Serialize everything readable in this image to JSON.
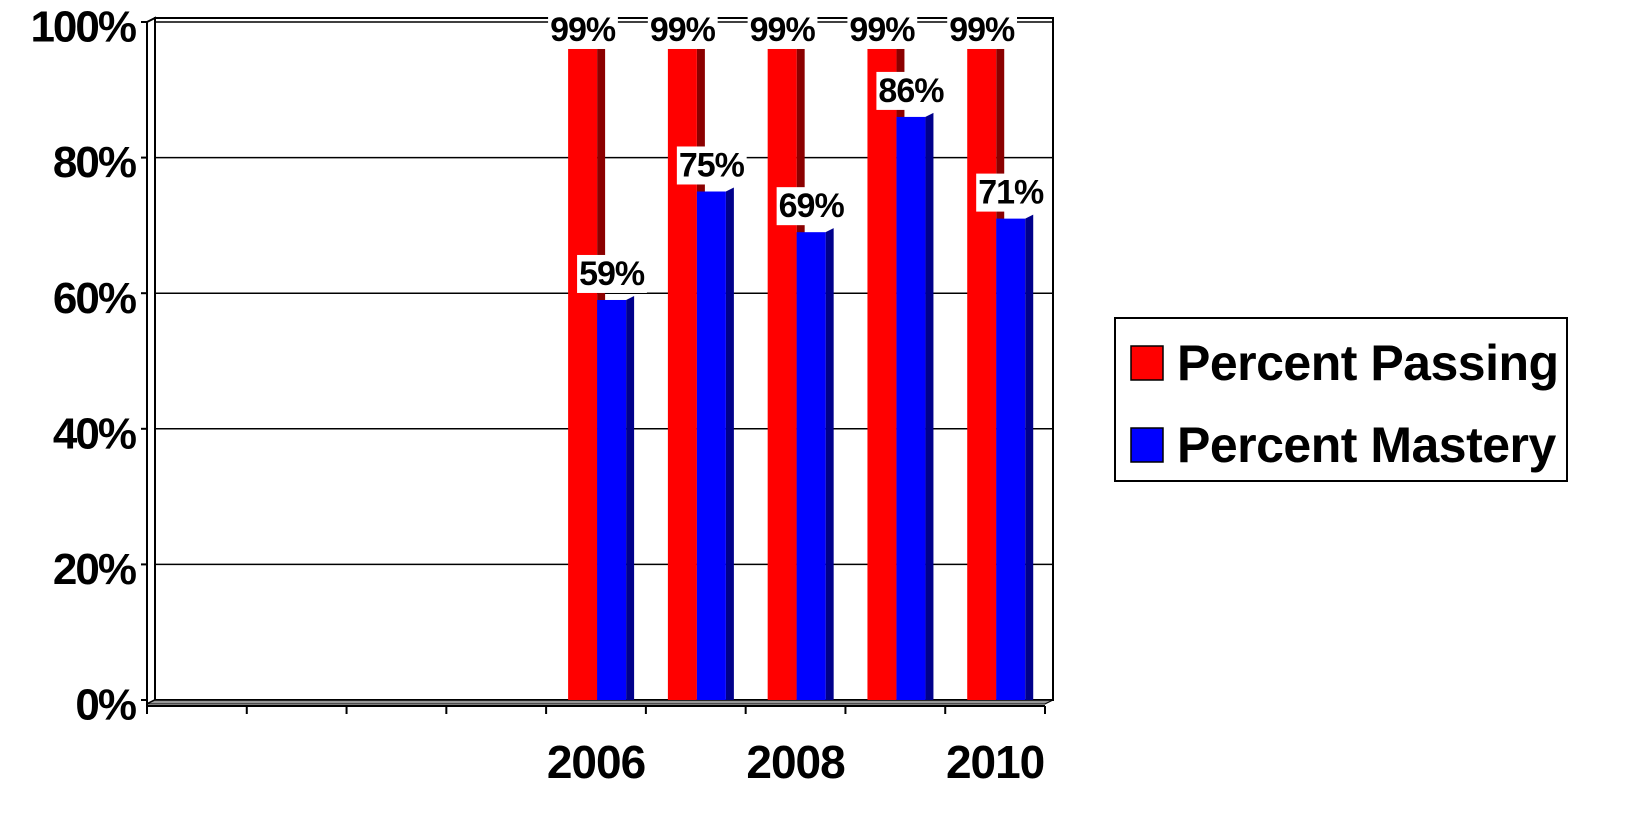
{
  "chart_data": {
    "type": "bar",
    "categories": [
      null,
      null,
      null,
      null,
      "2006",
      null,
      "2008",
      null,
      "2010"
    ],
    "series": [
      {
        "name": "Percent Passing",
        "color": "#ff0000",
        "side_color": "#8b0000",
        "values": [
          null,
          null,
          null,
          null,
          99,
          99,
          99,
          99,
          99
        ],
        "value_labels": [
          null,
          null,
          null,
          null,
          "99%",
          "99%",
          "99%",
          "99%",
          "99%"
        ]
      },
      {
        "name": "Percent Mastery",
        "color": "#0000ff",
        "side_color": "#00008b",
        "values": [
          null,
          null,
          null,
          null,
          59,
          75,
          69,
          86,
          71
        ],
        "value_labels": [
          null,
          null,
          null,
          null,
          "59%",
          "75%",
          "69%",
          "86%",
          "71%"
        ]
      }
    ],
    "ylim": [
      0,
      100
    ],
    "yticks": [
      {
        "value": 0,
        "label": "0%"
      },
      {
        "value": 20,
        "label": "20%"
      },
      {
        "value": 40,
        "label": "40%"
      },
      {
        "value": 60,
        "label": "60%"
      },
      {
        "value": 80,
        "label": "80%"
      },
      {
        "value": 100,
        "label": "100%"
      }
    ],
    "grid": true,
    "legend": "right"
  }
}
